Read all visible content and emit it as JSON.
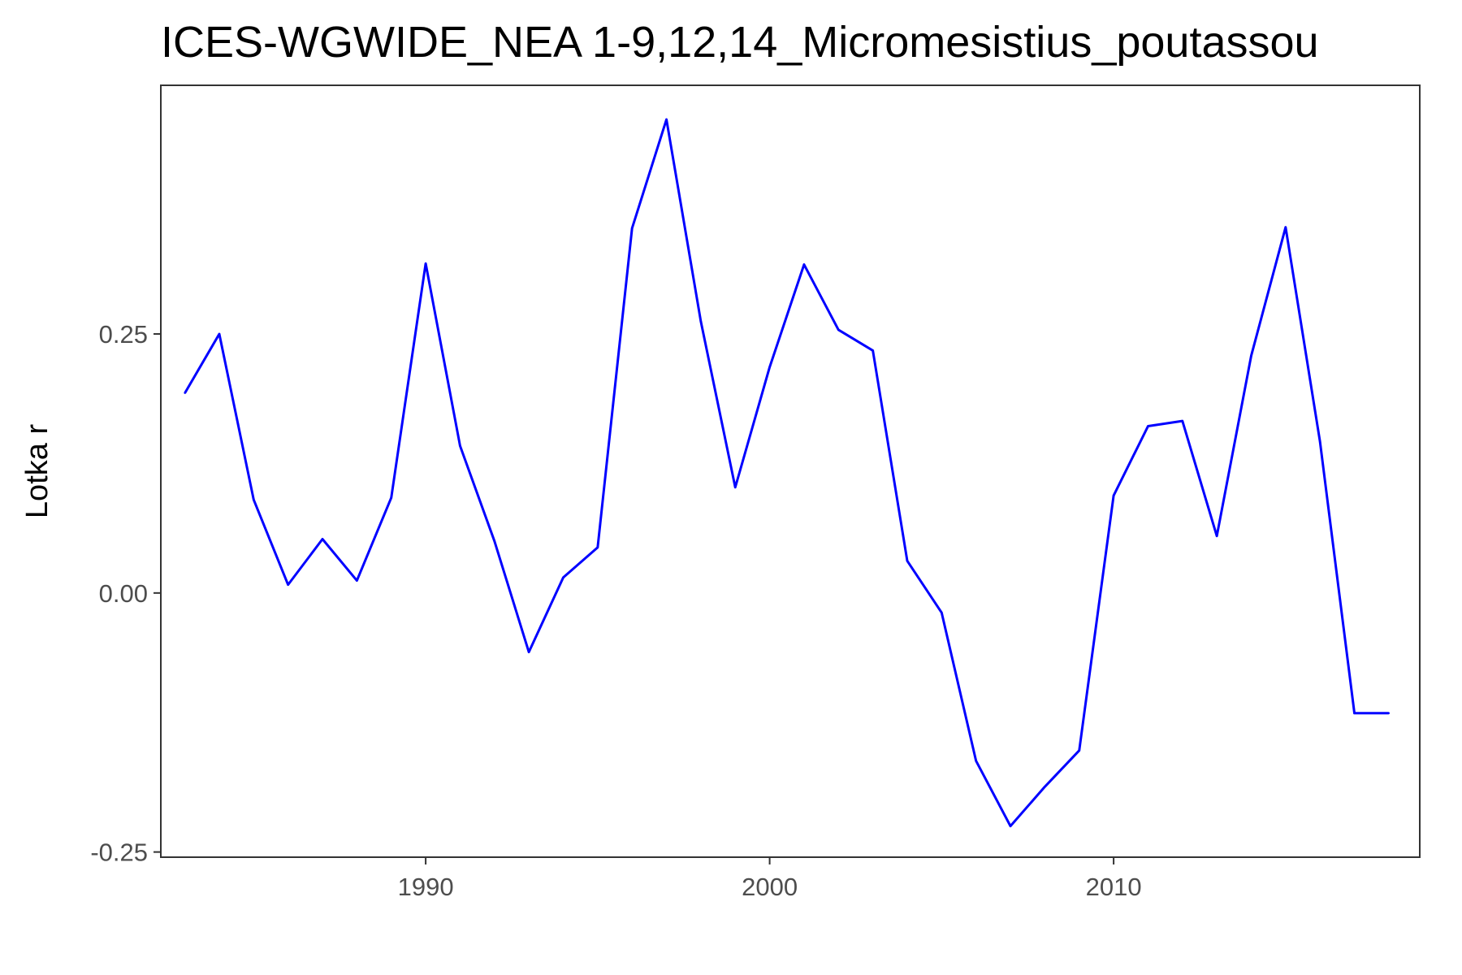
{
  "chart_data": {
    "type": "line",
    "title": "ICES-WGWIDE_NEA 1-9,12,14_Micromesistius_poutassou",
    "xlabel": "",
    "ylabel": "Lotka r",
    "xlim": [
      1982.3,
      2018.9
    ],
    "ylim": [
      -0.255,
      0.49
    ],
    "x_ticks": [
      1990,
      2000,
      2010
    ],
    "y_ticks": [
      -0.25,
      0.0,
      0.25
    ],
    "y_tick_labels": [
      "-0.25",
      "0.00",
      "0.25"
    ],
    "grid": false,
    "legend": "none",
    "series": [
      {
        "color": "#0000ff",
        "x": [
          1983,
          1984,
          1985,
          1986,
          1987,
          1988,
          1989,
          1990,
          1991,
          1992,
          1993,
          1994,
          1995,
          1996,
          1997,
          1998,
          1999,
          2000,
          2001,
          2002,
          2003,
          2004,
          2005,
          2006,
          2007,
          2008,
          2009,
          2010,
          2011,
          2012,
          2013,
          2014,
          2015,
          2016,
          2017,
          2018
        ],
        "y": [
          0.193,
          0.25,
          0.09,
          0.008,
          0.052,
          0.012,
          0.092,
          0.318,
          0.142,
          0.05,
          -0.057,
          0.015,
          0.044,
          0.352,
          0.457,
          0.262,
          0.102,
          0.218,
          0.317,
          0.254,
          0.234,
          0.031,
          -0.019,
          -0.162,
          -0.225,
          -0.187,
          -0.152,
          0.094,
          0.161,
          0.166,
          0.055,
          0.229,
          0.353,
          0.146,
          -0.116,
          -0.116
        ]
      }
    ]
  }
}
